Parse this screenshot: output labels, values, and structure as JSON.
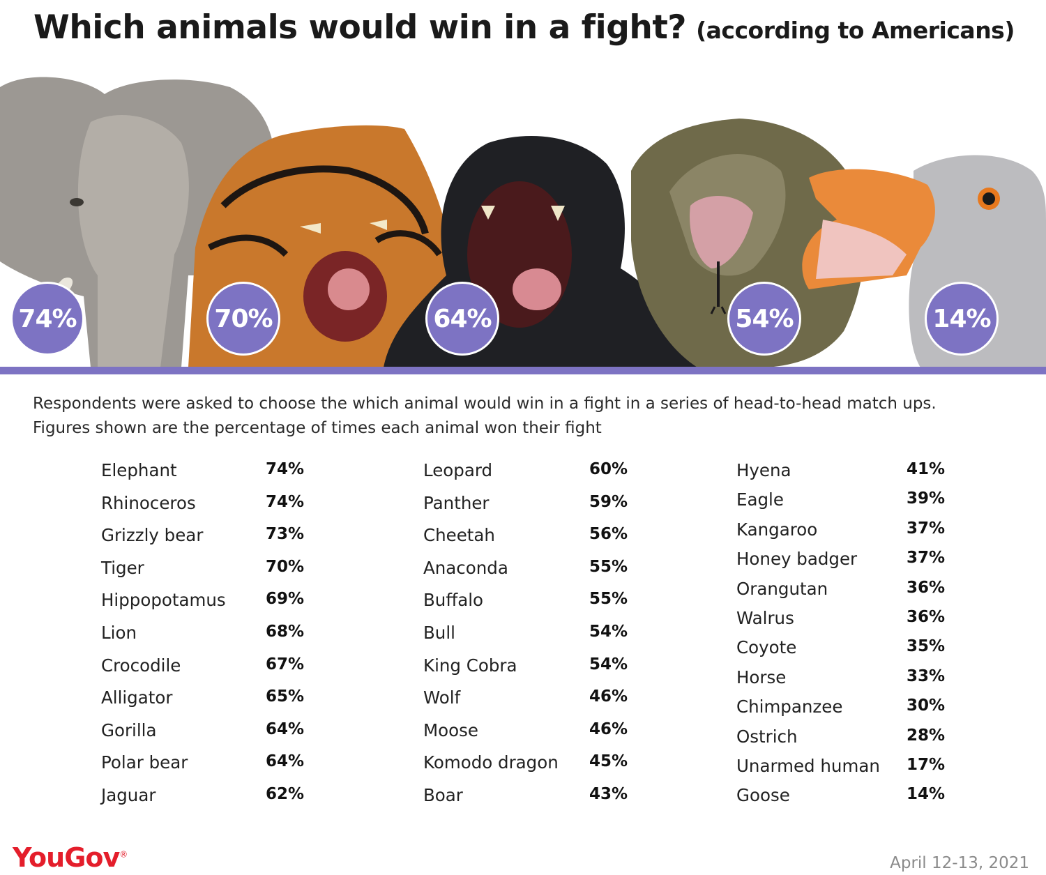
{
  "header": {
    "title": "Which animals would win in a fight?",
    "subtitle": "(according to Americans)"
  },
  "featured": [
    {
      "animal": "elephant-image",
      "pct": "74%"
    },
    {
      "animal": "tiger-image",
      "pct": "70%"
    },
    {
      "animal": "gorilla-image",
      "pct": "64%"
    },
    {
      "animal": "king-cobra-image",
      "pct": "54%"
    },
    {
      "animal": "goose-image",
      "pct": "14%"
    }
  ],
  "description": {
    "line1": "Respondents were asked to choose the which animal would win in a fight in a series of head-to-head match ups.",
    "line2": "Figures shown are the percentage of times each animal won their fight"
  },
  "columns": [
    [
      {
        "name": "Elephant",
        "pct": "74%"
      },
      {
        "name": "Rhinoceros",
        "pct": "74%"
      },
      {
        "name": "Grizzly bear",
        "pct": "73%"
      },
      {
        "name": "Tiger",
        "pct": "70%"
      },
      {
        "name": "Hippopotamus",
        "pct": "69%"
      },
      {
        "name": "Lion",
        "pct": "68%"
      },
      {
        "name": "Crocodile",
        "pct": "67%"
      },
      {
        "name": "Alligator",
        "pct": "65%"
      },
      {
        "name": "Gorilla",
        "pct": "64%"
      },
      {
        "name": "Polar bear",
        "pct": "64%"
      },
      {
        "name": "Jaguar",
        "pct": "62%"
      }
    ],
    [
      {
        "name": "Leopard",
        "pct": "60%"
      },
      {
        "name": "Panther",
        "pct": "59%"
      },
      {
        "name": "Cheetah",
        "pct": "56%"
      },
      {
        "name": "Anaconda",
        "pct": "55%"
      },
      {
        "name": "Buffalo",
        "pct": "55%"
      },
      {
        "name": "Bull",
        "pct": "54%"
      },
      {
        "name": "King Cobra",
        "pct": "54%"
      },
      {
        "name": "Wolf",
        "pct": "46%"
      },
      {
        "name": "Moose",
        "pct": "46%"
      },
      {
        "name": "Komodo dragon",
        "pct": "45%"
      },
      {
        "name": "Boar",
        "pct": "43%"
      }
    ],
    [
      {
        "name": "Hyena",
        "pct": "41%"
      },
      {
        "name": "Eagle",
        "pct": "39%"
      },
      {
        "name": "Kangaroo",
        "pct": "37%"
      },
      {
        "name": "Honey badger",
        "pct": "37%"
      },
      {
        "name": "Orangutan",
        "pct": "36%"
      },
      {
        "name": "Walrus",
        "pct": "36%"
      },
      {
        "name": "Coyote",
        "pct": "35%"
      },
      {
        "name": "Horse",
        "pct": "33%"
      },
      {
        "name": "Chimpanzee",
        "pct": "30%"
      },
      {
        "name": "Ostrich",
        "pct": "28%"
      },
      {
        "name": "Unarmed human",
        "pct": "17%"
      },
      {
        "name": "Goose",
        "pct": "14%"
      }
    ]
  ],
  "footer": {
    "brand": "YouGov",
    "brand_mark": "®",
    "date": "April 12-13, 2021"
  },
  "colors": {
    "accent": "#7d73c3",
    "brand_red": "#e41e2b"
  }
}
